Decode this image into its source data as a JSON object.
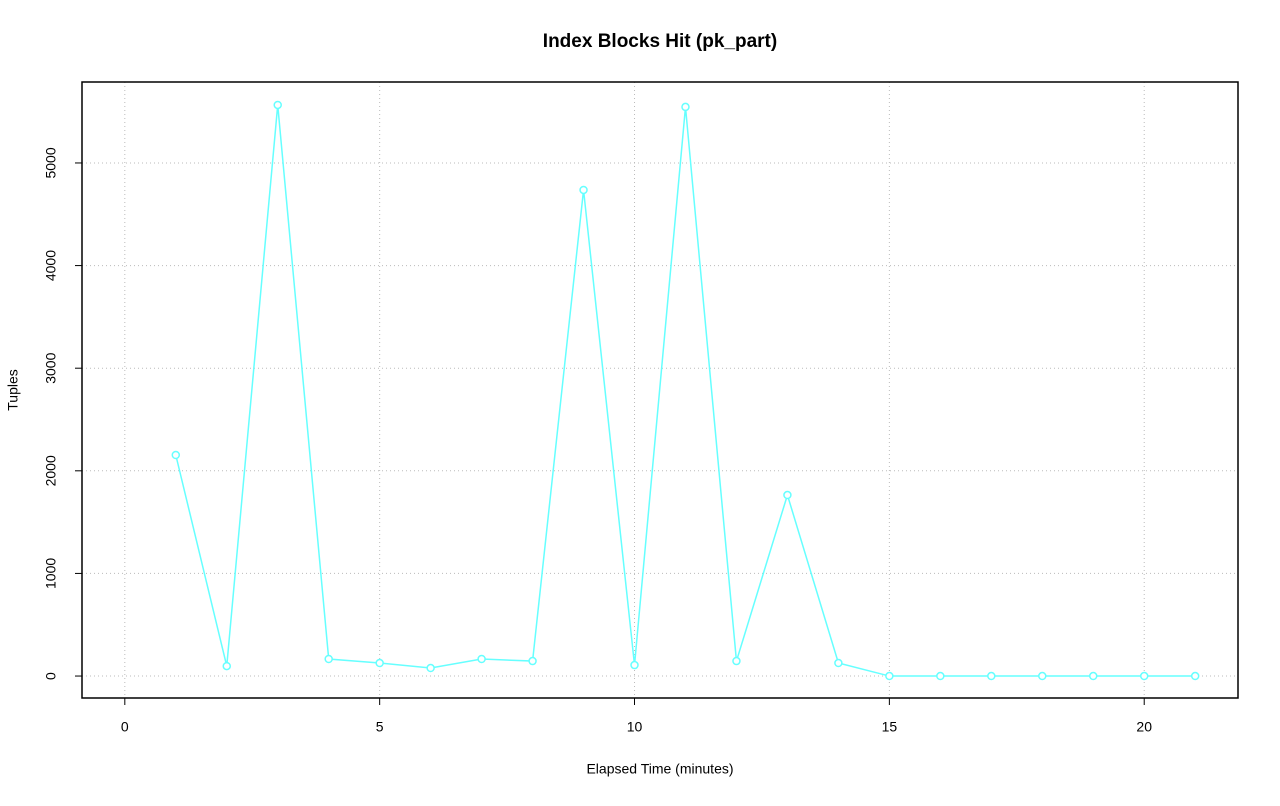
{
  "chart_data": {
    "type": "line",
    "title": "Index Blocks Hit (pk_part)",
    "x_label": "Elapsed Time (minutes)",
    "y_label": "Tuples",
    "x": [
      1,
      2,
      3,
      4,
      5,
      6,
      7,
      8,
      9,
      10,
      11,
      12,
      13,
      14,
      15,
      16,
      17,
      18,
      19,
      20,
      21
    ],
    "series": [
      {
        "name": "pk_part",
        "color": "#66ffff",
        "values": [
          2154,
          97,
          5565,
          166,
          127,
          78,
          166,
          146,
          4737,
          107,
          5546,
          146,
          1764,
          127,
          0,
          0,
          0,
          0,
          0,
          0,
          0
        ]
      }
    ],
    "xlim": [
      -0.84,
      21.84
    ],
    "ylim": [
      -214,
      5789
    ],
    "xticks": [
      0,
      5,
      10,
      15,
      20
    ],
    "yticks": [
      0,
      1000,
      2000,
      3000,
      4000,
      5000
    ],
    "grid": true
  }
}
